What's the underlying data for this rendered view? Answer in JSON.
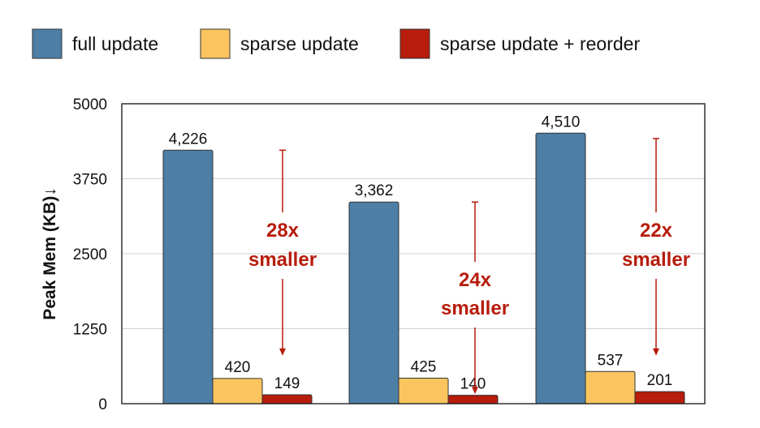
{
  "colors": {
    "full_update": "#4C7EA6",
    "sparse_update": "#FAC55F",
    "sparse_reorder": "#B71C0C",
    "annotation": "#B71C0C",
    "grid": "#cfcfcf",
    "bar_stroke": "#333333"
  },
  "chart_data": {
    "type": "bar",
    "title": "",
    "xlabel": "",
    "ylabel": "Peak Mem (KB)↓",
    "ylim": [
      0,
      5000
    ],
    "yticks": [
      0,
      1250,
      2500,
      3750,
      5000
    ],
    "ytick_labels": [
      "0",
      "1250",
      "2500",
      "3750",
      "5000"
    ],
    "grid": true,
    "legend_position": "top",
    "categories": [
      "",
      "",
      ""
    ],
    "series": [
      {
        "name": "full update",
        "color_key": "full_update",
        "values": [
          4226,
          3362,
          4510
        ],
        "labels": [
          "4,226",
          "3,362",
          "4,510"
        ]
      },
      {
        "name": "sparse update",
        "color_key": "sparse_update",
        "values": [
          420,
          425,
          537
        ],
        "labels": [
          "420",
          "425",
          "537"
        ]
      },
      {
        "name": "sparse update + reorder",
        "color_key": "sparse_reorder",
        "values": [
          149,
          140,
          201
        ],
        "labels": [
          "149",
          "140",
          "201"
        ]
      }
    ],
    "annotations": [
      {
        "line1": "28x",
        "line2": "smaller",
        "from_value": 4226,
        "to_value": 800
      },
      {
        "line1": "24x",
        "line2": "smaller",
        "from_value": 3362,
        "to_value": 160
      },
      {
        "line1": "22x",
        "line2": "smaller",
        "from_value": 4420,
        "to_value": 800
      }
    ]
  }
}
